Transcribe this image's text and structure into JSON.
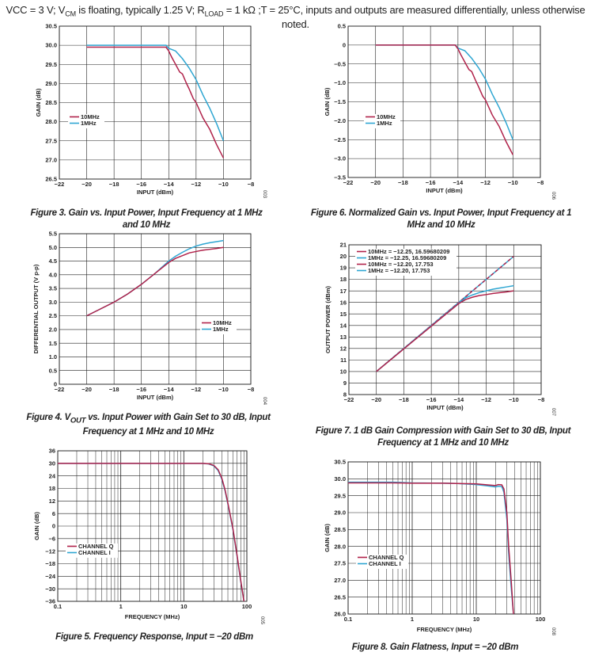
{
  "header": "VCC = 3 V; V_CM is floating, typically 1.25 V; R_LOAD = 1 kΩ ;T = 25°C, inputs and outputs are measured differentially, unless otherwise noted.",
  "colors": {
    "series_a": "#b0224a",
    "series_b": "#2ea6d2"
  },
  "chart_data": [
    {
      "id": "fig3",
      "type": "line",
      "fig_no": "003",
      "caption": "Figure 3. Gain vs. Input Power, Input Frequency at 1 MHz and 10 MHz",
      "xlabel": "INPUT (dBm)",
      "ylabel": "GAIN (dB)",
      "xlim": [
        -22,
        -8
      ],
      "ylim": [
        26.5,
        30.5
      ],
      "xscale": "linear",
      "xticks": [
        -22,
        -20,
        -18,
        -16,
        -14,
        -12,
        -10,
        -8
      ],
      "yticks": [
        26.5,
        27.0,
        27.5,
        28.0,
        28.5,
        29.0,
        29.5,
        30.0,
        30.5
      ],
      "xtick_labels": [
        "−22",
        "−20",
        "−18",
        "−16",
        "−14",
        "−12",
        "−10",
        "−8"
      ],
      "ytick_labels": [
        "26.5",
        "27.0",
        "27.5",
        "28.0",
        "28.5",
        "29.0",
        "29.5",
        "30.0",
        "30.5"
      ],
      "grid": "major",
      "legend": "left-middle",
      "series": [
        {
          "name": "10MHz",
          "x": [
            -20,
            -15,
            -14.5,
            -14.2,
            -14,
            -13.8,
            -13.5,
            -13.2,
            -13,
            -12.7,
            -12.5,
            -12.2,
            -12,
            -11.5,
            -11,
            -10.5,
            -10
          ],
          "y": [
            29.95,
            29.95,
            29.95,
            29.95,
            29.85,
            29.7,
            29.5,
            29.3,
            29.25,
            29.0,
            28.85,
            28.6,
            28.5,
            28.1,
            27.8,
            27.4,
            27.05
          ]
        },
        {
          "name": "1MHz",
          "x": [
            -20,
            -15,
            -14.5,
            -14.2,
            -14,
            -13.5,
            -13,
            -12.5,
            -12,
            -11.5,
            -11,
            -10.5,
            -10
          ],
          "y": [
            30.0,
            30.0,
            30.0,
            30.0,
            29.92,
            29.85,
            29.65,
            29.4,
            29.1,
            28.7,
            28.35,
            27.95,
            27.5
          ]
        }
      ]
    },
    {
      "id": "fig6",
      "type": "line",
      "fig_no": "006",
      "caption": "Figure 6. Normalized Gain vs. Input Power, Input Frequency at 1 MHz and 10 MHz",
      "xlabel": "INPUT (dBm)",
      "ylabel": "GAIN (dB)",
      "xlim": [
        -22,
        -8
      ],
      "ylim": [
        -3.5,
        0.5
      ],
      "xscale": "linear",
      "xticks": [
        -22,
        -20,
        -18,
        -16,
        -14,
        -12,
        -10,
        -8
      ],
      "yticks": [
        -3.5,
        -3.0,
        -2.5,
        -2.0,
        -1.5,
        -1.0,
        -0.5,
        0,
        0.5
      ],
      "xtick_labels": [
        "−22",
        "−20",
        "−18",
        "−16",
        "−14",
        "−12",
        "−10",
        "−8"
      ],
      "ytick_labels": [
        "−3.5",
        "−3.0",
        "−2.5",
        "−2.0",
        "−1.5",
        "−1.0",
        "−0.5",
        "0",
        "0.5"
      ],
      "grid": "major",
      "legend": "left-bottom",
      "series": [
        {
          "name": "10MHz",
          "x": [
            -20,
            -15,
            -14.5,
            -14.2,
            -14,
            -13.8,
            -13.5,
            -13.2,
            -13,
            -12.7,
            -12.5,
            -12.2,
            -12,
            -11.5,
            -11,
            -10.5,
            -10
          ],
          "y": [
            0,
            0,
            0,
            0,
            -0.1,
            -0.25,
            -0.45,
            -0.65,
            -0.7,
            -0.95,
            -1.1,
            -1.35,
            -1.45,
            -1.85,
            -2.15,
            -2.55,
            -2.9
          ]
        },
        {
          "name": "1MHz",
          "x": [
            -20,
            -15,
            -14.5,
            -14.2,
            -14,
            -13.5,
            -13,
            -12.5,
            -12,
            -11.5,
            -11,
            -10.5,
            -10
          ],
          "y": [
            0,
            0,
            0,
            0,
            -0.08,
            -0.15,
            -0.35,
            -0.6,
            -0.9,
            -1.3,
            -1.65,
            -2.05,
            -2.5
          ]
        }
      ]
    },
    {
      "id": "fig4",
      "type": "line",
      "fig_no": "004",
      "caption": "Figure 4. V_OUT vs. Input Power with Gain Set to 30 dB, Input Frequency at 1 MHz and 10 MHz",
      "xlabel": "INPUT (dBm)",
      "ylabel": "DIFFERENTIAL OUTPUT (V p-p)",
      "xlim": [
        -22,
        -8
      ],
      "ylim": [
        0,
        5.5
      ],
      "xscale": "linear",
      "xticks": [
        -22,
        -20,
        -18,
        -16,
        -14,
        -12,
        -10,
        -8
      ],
      "yticks": [
        0,
        0.5,
        1.0,
        1.5,
        2.0,
        2.5,
        3.0,
        3.5,
        4.0,
        4.5,
        5.0,
        5.5
      ],
      "xtick_labels": [
        "−22",
        "−20",
        "−18",
        "−16",
        "−14",
        "−12",
        "−10",
        "−8"
      ],
      "ytick_labels": [
        "0",
        "0.5",
        "1.0",
        "1.5",
        "2.0",
        "2.5",
        "3.0",
        "3.5",
        "4.0",
        "4.5",
        "5.0",
        "5.5"
      ],
      "grid": "major",
      "legend": "right-middle",
      "series": [
        {
          "name": "10MHz",
          "x": [
            -20,
            -19,
            -18,
            -17,
            -16,
            -15,
            -14,
            -13.5,
            -13,
            -12.5,
            -12,
            -11.5,
            -11,
            -10.5,
            -10
          ],
          "y": [
            2.5,
            2.75,
            3.0,
            3.3,
            3.65,
            4.05,
            4.45,
            4.6,
            4.7,
            4.8,
            4.85,
            4.9,
            4.93,
            4.96,
            5.0
          ]
        },
        {
          "name": "1MHz",
          "x": [
            -20,
            -19,
            -18,
            -17,
            -16,
            -15,
            -14,
            -13.5,
            -13,
            -12.5,
            -12,
            -11.5,
            -11,
            -10.5,
            -10
          ],
          "y": [
            2.5,
            2.75,
            3.0,
            3.3,
            3.65,
            4.05,
            4.5,
            4.68,
            4.82,
            4.95,
            5.05,
            5.12,
            5.17,
            5.21,
            5.25
          ]
        }
      ]
    },
    {
      "id": "fig7",
      "type": "line",
      "fig_no": "007",
      "caption": "Figure 7. 1 dB Gain Compression with Gain Set to 30 dB, Input Frequency at 1 MHz and 10 MHz",
      "xlabel": "INPUT (dBm)",
      "ylabel": "OUTPUT POWER (dBm)",
      "xlim": [
        -22,
        -8
      ],
      "ylim": [
        8,
        21
      ],
      "xscale": "linear",
      "xticks": [
        -22,
        -20,
        -18,
        -16,
        -14,
        -12,
        -10,
        -8
      ],
      "yticks": [
        8,
        9,
        10,
        11,
        12,
        13,
        14,
        15,
        16,
        17,
        18,
        19,
        20,
        21
      ],
      "xtick_labels": [
        "−22",
        "−20",
        "−18",
        "−16",
        "−14",
        "−12",
        "−10",
        "−8"
      ],
      "ytick_labels": [
        "8",
        "9",
        "10",
        "11",
        "12",
        "13",
        "14",
        "15",
        "16",
        "17",
        "18",
        "19",
        "20",
        "21"
      ],
      "grid": "major",
      "legend": "top-left",
      "series": [
        {
          "name": "10MHz = −12.25, 16.59680209",
          "x": [
            -20,
            -14,
            -13.5,
            -13,
            -12.5,
            -12,
            -11.5,
            -11,
            -10.5,
            -10
          ],
          "y": [
            10,
            15.9,
            16.25,
            16.45,
            16.6,
            16.68,
            16.78,
            16.85,
            16.92,
            17.0
          ]
        },
        {
          "name": "1MHz = −12.25, 16.59680209",
          "x": [
            -20,
            -14,
            -13.5,
            -13,
            -12.5,
            -12,
            -11.5,
            -11,
            -10.5,
            -10
          ],
          "y": [
            10,
            15.95,
            16.4,
            16.65,
            16.85,
            17.0,
            17.15,
            17.25,
            17.35,
            17.45
          ]
        },
        {
          "name": "10MHz = −12.20, 17.753",
          "x": [
            -20,
            -10
          ],
          "y": [
            10,
            20
          ]
        },
        {
          "name": "1MHz = −12.20, 17.753",
          "x": [
            -20,
            -10
          ],
          "y": [
            10,
            20
          ]
        }
      ]
    },
    {
      "id": "fig5",
      "type": "line",
      "fig_no": "005",
      "caption": "Figure 5. Frequency Response, Input = −20 dBm",
      "xlabel": "FREQUENCY (MHz)",
      "ylabel": "GAIN (dB)",
      "xlim": [
        0.1,
        100
      ],
      "ylim": [
        -36,
        36
      ],
      "xscale": "log",
      "xticks": [
        0.1,
        1,
        10,
        100
      ],
      "yticks": [
        -36,
        -30,
        -24,
        -18,
        -12,
        -6,
        0,
        6,
        12,
        18,
        24,
        30,
        36
      ],
      "xtick_labels": [
        "0.1",
        "1",
        "10",
        "100"
      ],
      "ytick_labels": [
        "−36",
        "−30",
        "−24",
        "−18",
        "−12",
        "−6",
        "0",
        "6",
        "12",
        "18",
        "24",
        "30",
        "36"
      ],
      "grid": "log",
      "legend": "left-bottom",
      "series": [
        {
          "name": "CHANNEL Q",
          "x": [
            0.1,
            1,
            10,
            20,
            25,
            30,
            35,
            40,
            45,
            50,
            60,
            70,
            80,
            90
          ],
          "y": [
            30,
            30,
            30,
            30,
            29.8,
            29.0,
            27.0,
            23.0,
            17.5,
            11.0,
            -1.0,
            -14.0,
            -26.0,
            -36.0
          ]
        },
        {
          "name": "CHANNEL I",
          "x": [
            0.1,
            1,
            10,
            20,
            25,
            30,
            35,
            40,
            45,
            50,
            60,
            70,
            80,
            90
          ],
          "y": [
            30,
            30,
            30,
            30,
            29.7,
            28.8,
            26.6,
            22.5,
            17.0,
            10.5,
            -1.5,
            -14.5,
            -26.5,
            -36.0
          ]
        }
      ]
    },
    {
      "id": "fig8",
      "type": "line",
      "fig_no": "008",
      "caption": "Figure 8. Gain Flatness, Input = −20 dBm",
      "xlabel": "FREQUENCY (MHz)",
      "ylabel": "GAIN (dB)",
      "xlim": [
        0.1,
        100
      ],
      "ylim": [
        26.0,
        30.5
      ],
      "xscale": "log",
      "xticks": [
        0.1,
        1,
        10,
        100
      ],
      "yticks": [
        26.0,
        26.5,
        27.0,
        27.5,
        28.0,
        28.5,
        29.0,
        29.5,
        30.0,
        30.5
      ],
      "xtick_labels": [
        "0.1",
        "1",
        "10",
        "100"
      ],
      "ytick_labels": [
        "26.0",
        "26.5",
        "27.0",
        "27.5",
        "28.0",
        "28.5",
        "29.0",
        "29.5",
        "30.0",
        "30.5"
      ],
      "grid": "log",
      "legend": "left-bottom",
      "series": [
        {
          "name": "CHANNEL Q",
          "x": [
            0.1,
            0.5,
            1,
            3,
            5,
            10,
            15,
            20,
            22,
            25,
            27,
            30,
            32,
            35,
            38
          ],
          "y": [
            29.88,
            29.88,
            29.87,
            29.87,
            29.86,
            29.85,
            29.82,
            29.8,
            29.83,
            29.82,
            29.7,
            29.0,
            28.0,
            27.0,
            26.0
          ]
        },
        {
          "name": "CHANNEL I",
          "x": [
            0.1,
            0.5,
            1,
            3,
            5,
            10,
            15,
            20,
            22,
            25,
            27,
            30,
            32,
            35,
            38
          ],
          "y": [
            29.9,
            29.9,
            29.88,
            29.87,
            29.86,
            29.83,
            29.79,
            29.76,
            29.78,
            29.77,
            29.6,
            28.8,
            27.8,
            26.8,
            26.0
          ]
        }
      ]
    }
  ]
}
